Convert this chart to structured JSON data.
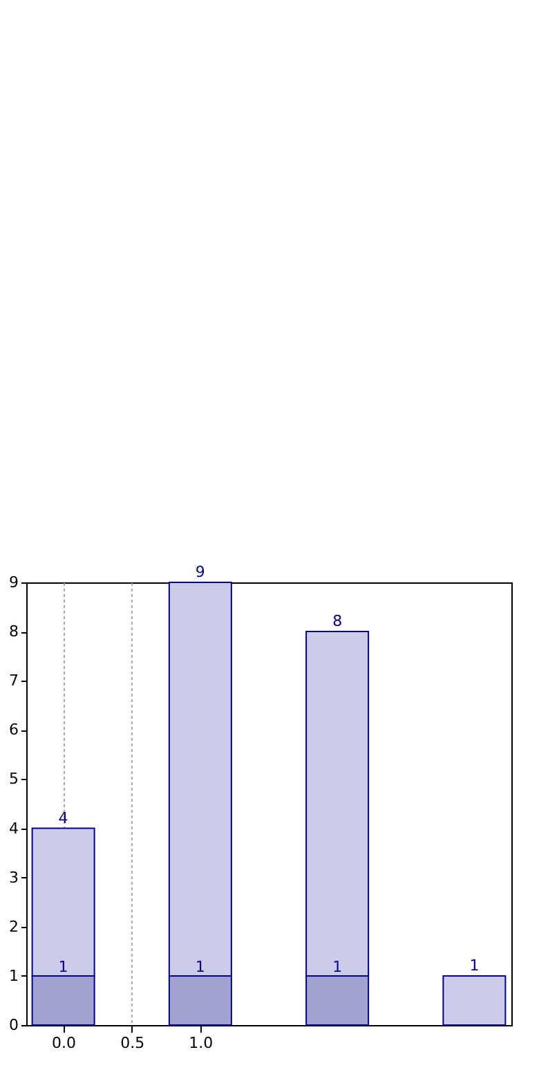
{
  "chart_data": {
    "type": "bar",
    "stacked": true,
    "x": [
      0,
      1,
      2,
      3
    ],
    "series": [
      {
        "color": "#a2a2d0",
        "values": [
          1,
          1,
          1,
          null
        ],
        "value_labels": [
          "1",
          "1",
          "1",
          null
        ]
      },
      {
        "color": "#ccccea",
        "values": [
          3,
          8,
          7,
          1
        ]
      }
    ],
    "totals": [
      "4",
      "9",
      "8",
      "1"
    ],
    "xlim": [
      -0.22,
      3.22
    ],
    "xticks": [
      {
        "value": 0,
        "label": "0.0"
      },
      {
        "value": 0.5,
        "label": "0.5"
      },
      {
        "value": 1,
        "label": "1.0"
      }
    ],
    "ylim": [
      0,
      9
    ],
    "yticks": [
      0,
      1,
      2,
      3,
      4,
      5,
      6,
      7,
      8,
      9
    ],
    "grid": "x"
  }
}
